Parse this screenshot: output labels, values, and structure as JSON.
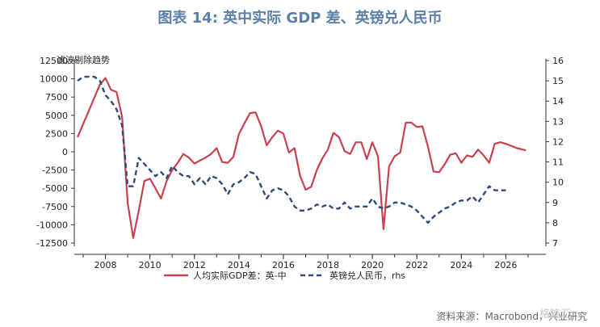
{
  "title": "图表 14: 英中实际 GDP 差、英镑兑人民币",
  "source": "资料来源：Macrobond，兴业研究",
  "watermark": "格隆汇",
  "chart_data": {
    "type": "line",
    "annotation": "滤波剔除趋势",
    "x_ticks": [
      "2008",
      "2010",
      "2012",
      "2014",
      "2016",
      "2018",
      "2020",
      "2022",
      "2024",
      "2026"
    ],
    "xlim": [
      2006.6,
      2027.8
    ],
    "y_left": {
      "ylim": [
        -12500,
        12500
      ],
      "ticks": [
        "12500",
        "10000",
        "7500",
        "5000",
        "2500",
        "0",
        "-2500",
        "-5000",
        "-7500",
        "-10000",
        "-12500"
      ]
    },
    "y_right": {
      "ylim": [
        7,
        16
      ],
      "ticks": [
        "16",
        "15",
        "14",
        "13",
        "12",
        "11",
        "10",
        "9",
        "8",
        "7"
      ]
    },
    "series": [
      {
        "name": "人均实际GDP差：英-中",
        "axis": "left",
        "color": "#c8414f",
        "style": "solid",
        "x": [
          2006.75,
          2007.0,
          2007.25,
          2007.5,
          2007.75,
          2008.0,
          2008.25,
          2008.5,
          2008.75,
          2009.0,
          2009.25,
          2009.5,
          2009.75,
          2010.0,
          2010.25,
          2010.5,
          2010.75,
          2011.0,
          2011.25,
          2011.5,
          2011.75,
          2012.0,
          2012.25,
          2012.5,
          2012.75,
          2013.0,
          2013.25,
          2013.5,
          2013.75,
          2014.0,
          2014.25,
          2014.5,
          2014.75,
          2015.0,
          2015.25,
          2015.5,
          2015.75,
          2016.0,
          2016.25,
          2016.5,
          2016.75,
          2017.0,
          2017.25,
          2017.5,
          2017.75,
          2018.0,
          2018.25,
          2018.5,
          2018.75,
          2019.0,
          2019.25,
          2019.5,
          2019.75,
          2020.0,
          2020.25,
          2020.5,
          2020.75,
          2021.0,
          2021.25,
          2021.5,
          2021.75,
          2022.0,
          2022.25,
          2022.5,
          2022.75,
          2023.0,
          2023.25,
          2023.5,
          2023.75,
          2024.0,
          2024.25,
          2024.5,
          2024.75,
          2025.0,
          2025.25,
          2025.5,
          2025.75,
          2026.0,
          2026.5,
          2026.9
        ],
        "y": [
          2000,
          3800,
          5600,
          7400,
          9200,
          10100,
          8500,
          8200,
          4800,
          -7000,
          -11800,
          -8000,
          -4000,
          -3700,
          -5000,
          -6400,
          -4000,
          -2500,
          -1500,
          -300,
          -800,
          -1600,
          -1200,
          -800,
          -300,
          500,
          -1400,
          -1500,
          -700,
          2400,
          3900,
          5300,
          5400,
          3500,
          900,
          2000,
          2900,
          2500,
          -100,
          500,
          -3300,
          -5200,
          -4800,
          -2500,
          -900,
          300,
          2600,
          2000,
          100,
          -300,
          1300,
          1300,
          -1000,
          1300,
          -600,
          -10600,
          -2000,
          -600,
          -100,
          4000,
          4000,
          3400,
          3500,
          700,
          -2700,
          -2800,
          -1700,
          -400,
          -200,
          -1500,
          -500,
          -700,
          300,
          -500,
          -1500,
          1100,
          1300,
          1100,
          500,
          200
        ]
      },
      {
        "name": "英镑兑人民币，rhs",
        "axis": "right",
        "color": "#2e4a78",
        "style": "dashed",
        "x": [
          2006.75,
          2007.0,
          2007.25,
          2007.5,
          2007.75,
          2008.0,
          2008.25,
          2008.5,
          2008.75,
          2009.0,
          2009.25,
          2009.5,
          2009.75,
          2010.0,
          2010.25,
          2010.5,
          2010.75,
          2011.0,
          2011.25,
          2011.5,
          2011.75,
          2012.0,
          2012.25,
          2012.5,
          2012.75,
          2013.0,
          2013.25,
          2013.5,
          2013.75,
          2014.0,
          2014.25,
          2014.5,
          2014.75,
          2015.0,
          2015.25,
          2015.5,
          2015.75,
          2016.0,
          2016.25,
          2016.5,
          2016.75,
          2017.0,
          2017.25,
          2017.5,
          2017.75,
          2018.0,
          2018.25,
          2018.5,
          2018.75,
          2019.0,
          2019.25,
          2019.5,
          2019.75,
          2020.0,
          2020.25,
          2020.5,
          2020.75,
          2021.0,
          2021.25,
          2021.5,
          2021.75,
          2022.0,
          2022.25,
          2022.5,
          2022.75,
          2023.0,
          2023.25,
          2023.5,
          2023.75,
          2024.0,
          2024.25,
          2024.5,
          2024.75,
          2025.0,
          2025.25,
          2025.5,
          2025.75,
          2026.0
        ],
        "y": [
          15.0,
          15.2,
          15.2,
          15.2,
          15.0,
          14.3,
          14.0,
          13.6,
          12.8,
          9.8,
          9.8,
          11.2,
          10.9,
          10.6,
          10.3,
          10.5,
          10.2,
          10.8,
          10.5,
          10.3,
          10.3,
          9.9,
          10.2,
          9.9,
          10.3,
          10.2,
          9.9,
          9.4,
          9.9,
          10.0,
          10.2,
          10.5,
          10.4,
          9.8,
          9.2,
          9.6,
          9.7,
          9.6,
          9.3,
          8.8,
          8.6,
          8.6,
          8.7,
          8.9,
          8.8,
          8.9,
          8.7,
          8.7,
          9.0,
          8.7,
          8.8,
          8.8,
          8.8,
          9.2,
          8.8,
          8.7,
          8.8,
          9.0,
          9.0,
          8.9,
          8.8,
          8.6,
          8.3,
          8.0,
          8.3,
          8.5,
          8.7,
          8.8,
          9.0,
          9.1,
          9.1,
          9.3,
          9.0,
          9.4,
          9.8,
          9.6,
          9.6,
          9.6
        ]
      }
    ]
  }
}
